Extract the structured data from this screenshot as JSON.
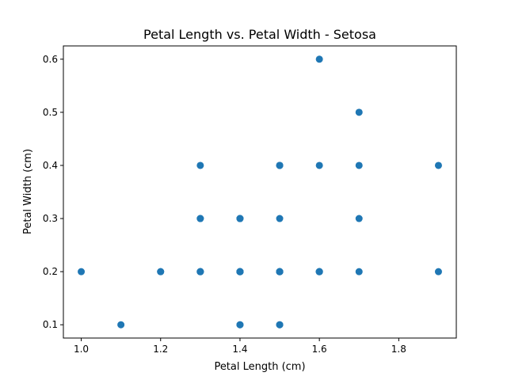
{
  "chart_data": {
    "type": "scatter",
    "title": "Petal Length vs. Petal Width - Setosa",
    "xlabel": "Petal Length (cm)",
    "ylabel": "Petal Width (cm)",
    "xlim": [
      0.955,
      1.945
    ],
    "ylim": [
      0.075,
      0.625
    ],
    "xticks": [
      1.0,
      1.2,
      1.4,
      1.6,
      1.8
    ],
    "xtick_labels": [
      "1.0",
      "1.2",
      "1.4",
      "1.6",
      "1.8"
    ],
    "yticks": [
      0.1,
      0.2,
      0.3,
      0.4,
      0.5,
      0.6
    ],
    "ytick_labels": [
      "0.1",
      "0.2",
      "0.3",
      "0.4",
      "0.5",
      "0.6"
    ],
    "grid": false,
    "color": "#1f77b4",
    "x": [
      1.4,
      1.4,
      1.3,
      1.5,
      1.4,
      1.7,
      1.4,
      1.5,
      1.4,
      1.5,
      1.5,
      1.6,
      1.4,
      1.1,
      1.2,
      1.5,
      1.3,
      1.4,
      1.7,
      1.5,
      1.7,
      1.5,
      1.0,
      1.7,
      1.9,
      1.6,
      1.6,
      1.5,
      1.4,
      1.6,
      1.6,
      1.5,
      1.5,
      1.4,
      1.5,
      1.2,
      1.3,
      1.4,
      1.3,
      1.5,
      1.3,
      1.3,
      1.3,
      1.6,
      1.9,
      1.4,
      1.6,
      1.4,
      1.5,
      1.4
    ],
    "y": [
      0.2,
      0.2,
      0.2,
      0.2,
      0.2,
      0.4,
      0.3,
      0.2,
      0.2,
      0.1,
      0.2,
      0.2,
      0.1,
      0.1,
      0.2,
      0.4,
      0.4,
      0.3,
      0.3,
      0.3,
      0.2,
      0.4,
      0.2,
      0.5,
      0.2,
      0.2,
      0.4,
      0.2,
      0.2,
      0.2,
      0.2,
      0.4,
      0.1,
      0.2,
      0.2,
      0.2,
      0.2,
      0.1,
      0.2,
      0.2,
      0.3,
      0.3,
      0.2,
      0.6,
      0.4,
      0.3,
      0.2,
      0.2,
      0.2,
      0.2
    ]
  }
}
